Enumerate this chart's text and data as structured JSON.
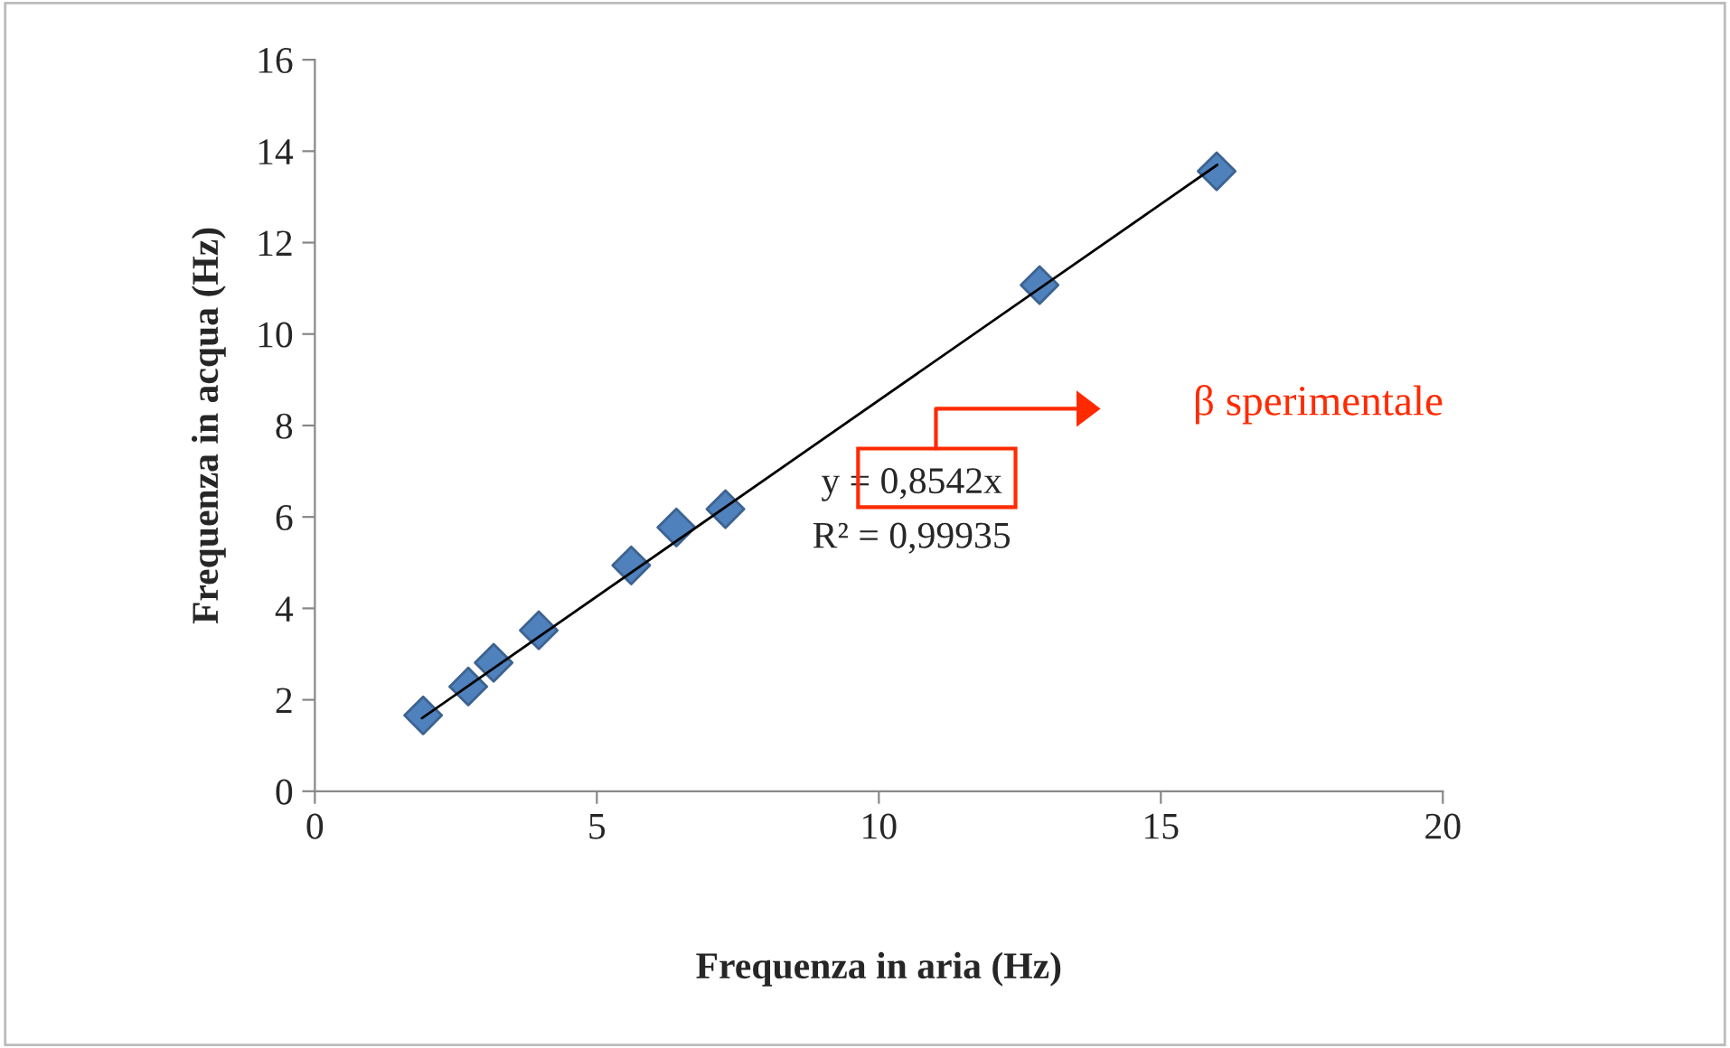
{
  "chart_data": {
    "type": "scatter",
    "xlabel": "Frequenza in aria (Hz)",
    "ylabel": "Frequenza in acqua (Hz)",
    "x": [
      1.92,
      2.72,
      3.17,
      3.97,
      5.61,
      6.41,
      7.28,
      12.85,
      15.99
    ],
    "series": [
      {
        "color": "#4f81bd",
        "values": [
          1.66,
          2.29,
          2.81,
          3.52,
          4.94,
          5.77,
          6.17,
          11.07,
          13.56
        ],
        "marker": "diamond"
      },
      {
        "type": "line",
        "color": "#000000",
        "x": [
          1.9,
          16
        ],
        "values": [
          1.6,
          13.7
        ],
        "marker": "none"
      }
    ],
    "xlim": [
      0,
      20
    ],
    "xticks": [
      0,
      5,
      10,
      15,
      20
    ],
    "ylim": [
      0,
      16
    ],
    "yticks": [
      0,
      2,
      4,
      6,
      8,
      10,
      12,
      14,
      16
    ],
    "grid": false,
    "legend": false,
    "annotations": [
      "y = 0,8542x",
      "R² = 0,99935",
      "β sperimentale"
    ]
  }
}
